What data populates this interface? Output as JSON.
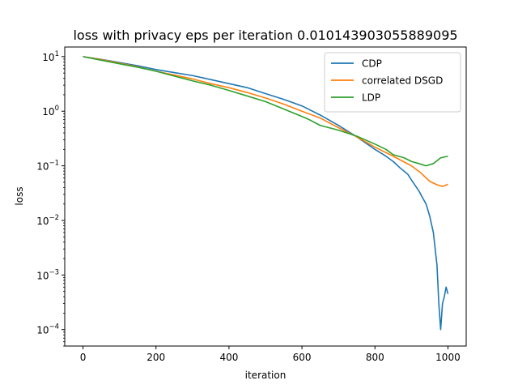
{
  "chart_data": {
    "type": "line",
    "title": "loss with privacy eps per iteration 0.010143903055889095",
    "xlabel": "iteration",
    "ylabel": "loss",
    "xlim": [
      -50,
      1050
    ],
    "ylim": [
      5e-05,
      15
    ],
    "yscale": "log",
    "grid": false,
    "legend_position": "top-right",
    "xticks": [
      {
        "value": 0,
        "label": "0"
      },
      {
        "value": 200,
        "label": "200"
      },
      {
        "value": 400,
        "label": "400"
      },
      {
        "value": 600,
        "label": "600"
      },
      {
        "value": 800,
        "label": "800"
      },
      {
        "value": 1000,
        "label": "1000"
      }
    ],
    "yticks": [
      {
        "value": 0.0001,
        "base": "10",
        "exp": "−4"
      },
      {
        "value": 0.001,
        "base": "10",
        "exp": "−3"
      },
      {
        "value": 0.01,
        "base": "10",
        "exp": "−2"
      },
      {
        "value": 0.1,
        "base": "10",
        "exp": "−1"
      },
      {
        "value": 1,
        "base": "10",
        "exp": "0"
      },
      {
        "value": 10,
        "base": "10",
        "exp": "1"
      }
    ],
    "series": [
      {
        "name": "CDP",
        "color": "#1f77b4",
        "points": [
          [
            0,
            10
          ],
          [
            50,
            8.9
          ],
          [
            100,
            7.8
          ],
          [
            150,
            6.8
          ],
          [
            200,
            5.8
          ],
          [
            250,
            5.1
          ],
          [
            300,
            4.5
          ],
          [
            350,
            3.8
          ],
          [
            400,
            3.2
          ],
          [
            450,
            2.7
          ],
          [
            500,
            2.1
          ],
          [
            550,
            1.65
          ],
          [
            600,
            1.25
          ],
          [
            650,
            0.85
          ],
          [
            700,
            0.55
          ],
          [
            750,
            0.34
          ],
          [
            800,
            0.2
          ],
          [
            830,
            0.15
          ],
          [
            850,
            0.12
          ],
          [
            870,
            0.09
          ],
          [
            890,
            0.07
          ],
          [
            900,
            0.055
          ],
          [
            920,
            0.035
          ],
          [
            940,
            0.02
          ],
          [
            950,
            0.012
          ],
          [
            960,
            0.006
          ],
          [
            970,
            0.0015
          ],
          [
            975,
            0.0003
          ],
          [
            980,
            0.0001
          ],
          [
            985,
            0.0003
          ],
          [
            990,
            0.0004
          ],
          [
            995,
            0.0006
          ],
          [
            1000,
            0.00045
          ]
        ]
      },
      {
        "name": "correlated DSGD",
        "color": "#ff7f0e",
        "points": [
          [
            0,
            10
          ],
          [
            50,
            8.8
          ],
          [
            100,
            7.6
          ],
          [
            150,
            6.5
          ],
          [
            200,
            5.4
          ],
          [
            250,
            4.6
          ],
          [
            300,
            3.9
          ],
          [
            350,
            3.2
          ],
          [
            400,
            2.7
          ],
          [
            450,
            2.2
          ],
          [
            500,
            1.75
          ],
          [
            550,
            1.35
          ],
          [
            600,
            1.0
          ],
          [
            650,
            0.75
          ],
          [
            700,
            0.5
          ],
          [
            750,
            0.34
          ],
          [
            800,
            0.22
          ],
          [
            850,
            0.15
          ],
          [
            900,
            0.1
          ],
          [
            925,
            0.075
          ],
          [
            950,
            0.052
          ],
          [
            970,
            0.045
          ],
          [
            985,
            0.042
          ],
          [
            1000,
            0.046
          ]
        ]
      },
      {
        "name": "LDP",
        "color": "#2ca02c",
        "points": [
          [
            0,
            10
          ],
          [
            50,
            8.6
          ],
          [
            100,
            7.4
          ],
          [
            150,
            6.4
          ],
          [
            200,
            5.4
          ],
          [
            250,
            4.4
          ],
          [
            300,
            3.6
          ],
          [
            350,
            3.0
          ],
          [
            400,
            2.4
          ],
          [
            450,
            1.9
          ],
          [
            500,
            1.5
          ],
          [
            550,
            1.1
          ],
          [
            600,
            0.8
          ],
          [
            620,
            0.7
          ],
          [
            650,
            0.55
          ],
          [
            700,
            0.45
          ],
          [
            750,
            0.35
          ],
          [
            800,
            0.25
          ],
          [
            830,
            0.2
          ],
          [
            850,
            0.16
          ],
          [
            880,
            0.14
          ],
          [
            900,
            0.12
          ],
          [
            920,
            0.11
          ],
          [
            940,
            0.1
          ],
          [
            960,
            0.11
          ],
          [
            980,
            0.14
          ],
          [
            1000,
            0.15
          ]
        ]
      }
    ]
  }
}
